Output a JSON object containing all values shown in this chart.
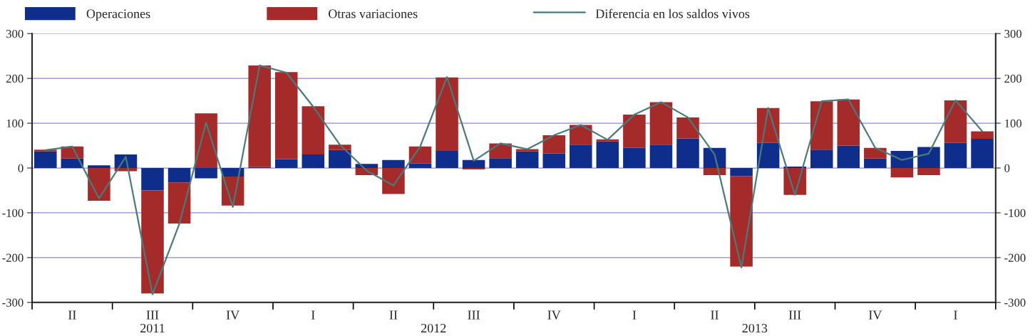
{
  "chart_data": {
    "type": "bar",
    "stacked": true,
    "categories": [
      null,
      "II",
      null,
      null,
      "III",
      null,
      null,
      "IV",
      null,
      null,
      "I",
      null,
      null,
      "II",
      null,
      null,
      "III",
      null,
      null,
      "IV",
      null,
      null,
      "I",
      null,
      null,
      "II",
      null,
      null,
      "III",
      null,
      null,
      "IV",
      null,
      null,
      "I",
      null
    ],
    "series": [
      {
        "name": "Operaciones",
        "color": "#0f2d8a",
        "values": [
          37,
          21,
          6,
          30,
          -50,
          -32,
          -23,
          -19,
          2,
          20,
          30,
          40,
          9,
          18,
          10,
          38,
          18,
          22,
          37,
          32,
          52,
          59,
          45,
          52,
          66,
          45,
          -18,
          56,
          3,
          41,
          50,
          21,
          38,
          47,
          56,
          65
        ]
      },
      {
        "name": "Otras variaciones",
        "color": "#a52a2a",
        "values": [
          4,
          27,
          -73,
          -7,
          -230,
          -92,
          122,
          -65,
          227,
          194,
          108,
          12,
          -16,
          -58,
          38,
          164,
          -3,
          33,
          5,
          41,
          44,
          5,
          74,
          95,
          47,
          -16,
          -202,
          78,
          -60,
          108,
          103,
          24,
          -21,
          -16,
          95,
          17
        ]
      },
      {
        "name": "Diferencia en los saldos vivos",
        "type": "line",
        "color": "#4a7a7a",
        "values": [
          40,
          48,
          -68,
          25,
          -282,
          -125,
          101,
          -87,
          229,
          213,
          137,
          52,
          -6,
          -39,
          48,
          203,
          16,
          55,
          42,
          73,
          96,
          63,
          119,
          147,
          113,
          30,
          -222,
          134,
          -60,
          149,
          153,
          45,
          18,
          32,
          151,
          82
        ]
      }
    ],
    "ylim": [
      -300,
      300
    ],
    "yticks": [
      -300,
      -200,
      -100,
      0,
      100,
      200,
      300
    ],
    "y2lim": [
      -300,
      300
    ],
    "y2ticks": [
      -300,
      -200,
      -100,
      0,
      100,
      200,
      300
    ],
    "grid": "y",
    "legend": "top",
    "marker": "none",
    "line_style": "solid",
    "annotations": [
      "2011",
      "2012",
      "2013"
    ]
  }
}
